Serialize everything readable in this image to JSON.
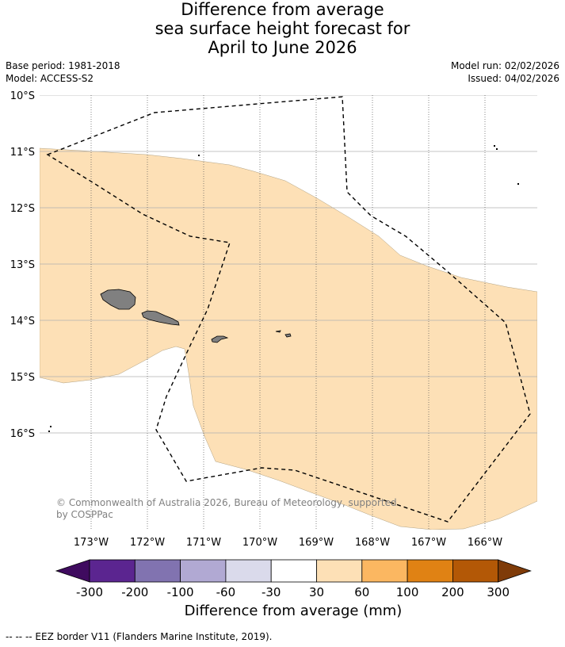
{
  "title": {
    "line1": "Difference from average",
    "line2": "sea surface height forecast for",
    "line3": "April to June 2026"
  },
  "meta": {
    "base_period": "Base period: 1981-2018",
    "model": "Model: ACCESS-S2",
    "model_run": "Model run: 02/02/2026",
    "issued": "Issued: 04/02/2026"
  },
  "map": {
    "lat_labels": [
      "10°S",
      "11°S",
      "12°S",
      "13°S",
      "14°S",
      "15°S",
      "16°S"
    ],
    "lon_labels": [
      "173°W",
      "172°W",
      "171°W",
      "170°W",
      "169°W",
      "168°W",
      "167°W",
      "166°W"
    ],
    "copyright_line1": "© Commonwealth of Australia 2026, Bureau of Meteorology, supported",
    "copyright_line2": "by COSPPac",
    "colors": {
      "ocean_anomaly_30_60": "#fde0b6",
      "land": "#808080",
      "eez_line": "#000000"
    }
  },
  "colorbar": {
    "title": "Difference from average (mm)",
    "tick_labels": [
      "-300",
      "-200",
      "-100",
      "-60",
      "-30",
      "30",
      "60",
      "100",
      "200",
      "300"
    ],
    "colors": [
      "#3f0b5f",
      "#5b2590",
      "#8173b0",
      "#b1a9d3",
      "#dadaeb",
      "#ffffff",
      "#fde0b6",
      "#fbb761",
      "#e08214",
      "#b35806",
      "#7f3b08"
    ]
  },
  "footer": {
    "legend": "--  --  -- EEZ border V11 (Flanders Marine Institute, 2019)."
  }
}
